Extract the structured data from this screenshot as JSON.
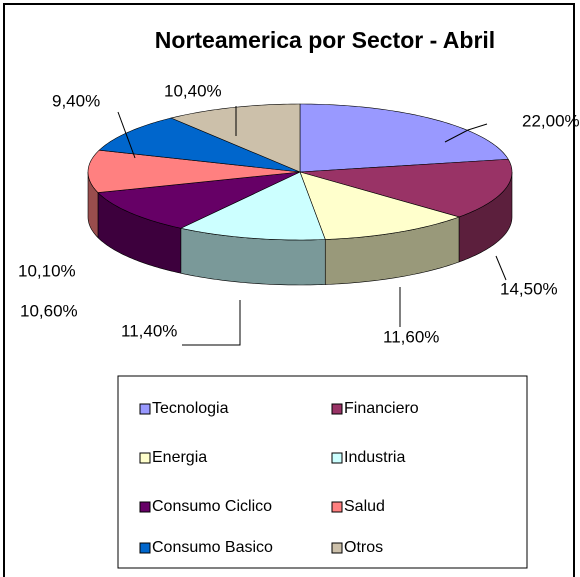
{
  "chart_data": {
    "type": "pie3d",
    "title": "Norteamerica por Sector - Abril",
    "categories": [
      "Tecnologia",
      "Financiero",
      "Energia",
      "Industria",
      "Consumo Ciclico",
      "Salud",
      "Consumo Basico",
      "Otros"
    ],
    "values": [
      22.0,
      14.5,
      11.6,
      11.4,
      10.6,
      10.1,
      9.4,
      10.4
    ],
    "value_labels": [
      "22,00%",
      "14,50%",
      "11,60%",
      "11,40%",
      "10,60%",
      "10,10%",
      "9,40%",
      "10,40%"
    ],
    "colors": [
      "#9999ff",
      "#993366",
      "#ffffcc",
      "#ccffff",
      "#660066",
      "#ff8080",
      "#0066cc",
      "#ccc0aa"
    ],
    "legend": "bottom"
  }
}
